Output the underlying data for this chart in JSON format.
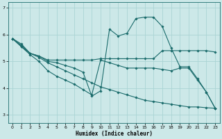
{
  "xlabel": "Humidex (Indice chaleur)",
  "bg_color": "#cce8e8",
  "line_color": "#1a6b6b",
  "grid_color": "#aad4d4",
  "xlim": [
    -0.5,
    23.5
  ],
  "ylim": [
    2.7,
    7.2
  ],
  "yticks": [
    3,
    4,
    5,
    6,
    7
  ],
  "xticks": [
    0,
    1,
    2,
    3,
    4,
    5,
    6,
    7,
    8,
    9,
    10,
    11,
    12,
    13,
    14,
    15,
    16,
    17,
    18,
    19,
    20,
    21,
    22,
    23
  ],
  "series": [
    {
      "x": [
        0,
        1,
        2,
        3,
        4,
        5,
        6,
        7,
        8,
        9,
        10,
        11,
        12,
        13,
        14,
        15,
        16,
        17,
        18,
        19,
        20,
        21,
        22,
        23
      ],
      "y": [
        5.85,
        5.65,
        5.3,
        5.2,
        5.0,
        4.95,
        4.85,
        4.75,
        4.6,
        3.7,
        3.9,
        6.2,
        5.95,
        6.05,
        6.6,
        6.65,
        6.65,
        6.3,
        5.5,
        4.8,
        4.8,
        4.35,
        3.85,
        3.25
      ]
    },
    {
      "x": [
        0,
        1,
        2,
        3,
        4,
        5,
        6,
        7,
        8,
        9,
        10,
        11,
        12,
        13,
        14,
        15,
        16,
        17,
        18,
        19,
        20,
        21,
        22,
        23
      ],
      "y": [
        5.85,
        5.6,
        5.3,
        5.2,
        5.05,
        5.05,
        5.05,
        5.05,
        5.05,
        5.05,
        5.1,
        5.1,
        5.1,
        5.1,
        5.1,
        5.1,
        5.1,
        5.4,
        5.4,
        5.4,
        5.4,
        5.4,
        5.4,
        5.35
      ]
    },
    {
      "x": [
        0,
        1,
        2,
        3,
        4,
        5,
        6,
        7,
        8,
        9,
        10,
        11,
        12,
        13,
        14,
        15,
        16,
        17,
        18,
        19,
        20,
        21,
        22,
        23
      ],
      "y": [
        5.85,
        5.55,
        5.3,
        5.15,
        4.95,
        4.8,
        4.65,
        4.5,
        4.35,
        4.2,
        4.05,
        3.95,
        3.85,
        3.75,
        3.65,
        3.55,
        3.5,
        3.45,
        3.4,
        3.35,
        3.3,
        3.3,
        3.27,
        3.25
      ]
    },
    {
      "x": [
        0,
        1,
        2,
        3,
        4,
        5,
        6,
        7,
        8,
        9,
        10,
        11,
        12,
        13,
        14,
        15,
        16,
        17,
        18,
        19,
        20,
        21,
        22,
        23
      ],
      "y": [
        5.85,
        5.55,
        5.25,
        5.0,
        4.65,
        4.45,
        4.3,
        4.15,
        3.95,
        3.75,
        5.05,
        4.95,
        4.85,
        4.75,
        4.75,
        4.75,
        4.75,
        4.7,
        4.65,
        4.75,
        4.75,
        4.3,
        3.85,
        3.25
      ]
    }
  ]
}
